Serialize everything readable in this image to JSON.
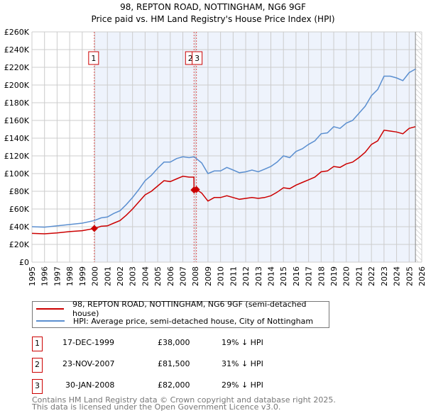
{
  "title": "98, REPTON ROAD, NOTTINGHAM, NG6 9GF",
  "subtitle": "Price paid vs. HM Land Registry's House Price Index (HPI)",
  "chart_data": {
    "type": "line",
    "ylim": [
      0,
      260000
    ],
    "xlim": [
      1995,
      2026
    ],
    "yticks": [
      {
        "v": 0,
        "label": "£0"
      },
      {
        "v": 20000,
        "label": "£20K"
      },
      {
        "v": 40000,
        "label": "£40K"
      },
      {
        "v": 60000,
        "label": "£60K"
      },
      {
        "v": 80000,
        "label": "£80K"
      },
      {
        "v": 100000,
        "label": "£100K"
      },
      {
        "v": 120000,
        "label": "£120K"
      },
      {
        "v": 140000,
        "label": "£140K"
      },
      {
        "v": 160000,
        "label": "£160K"
      },
      {
        "v": 180000,
        "label": "£180K"
      },
      {
        "v": 200000,
        "label": "£200K"
      },
      {
        "v": 220000,
        "label": "£220K"
      },
      {
        "v": 240000,
        "label": "£240K"
      },
      {
        "v": 260000,
        "label": "£260K"
      }
    ],
    "xticks": [
      "1995",
      "1996",
      "1997",
      "1998",
      "1999",
      "2000",
      "2001",
      "2002",
      "2003",
      "2004",
      "2005",
      "2006",
      "2007",
      "2008",
      "2009",
      "2010",
      "2011",
      "2012",
      "2013",
      "2014",
      "2015",
      "2016",
      "2017",
      "2018",
      "2019",
      "2020",
      "2021",
      "2022",
      "2023",
      "2024",
      "2025",
      "2026"
    ],
    "grid": true,
    "series": [
      {
        "name": "HPI: Average price, semi-detached house, City of Nottingham",
        "color": "#5b8fd0",
        "x": [
          1995,
          1996,
          1997,
          1998,
          1999,
          1999.96,
          2000.5,
          2001,
          2001.5,
          2002,
          2002.5,
          2003,
          2003.5,
          2004,
          2004.5,
          2005,
          2005.5,
          2006,
          2006.5,
          2007,
          2007.5,
          2007.89,
          2008.08,
          2008.5,
          2009,
          2009.5,
          2010,
          2010.5,
          2011,
          2011.5,
          2012,
          2012.5,
          2013,
          2013.5,
          2014,
          2014.5,
          2015,
          2015.5,
          2016,
          2016.5,
          2017,
          2017.5,
          2018,
          2018.5,
          2019,
          2019.5,
          2020,
          2020.5,
          2021,
          2021.5,
          2022,
          2022.5,
          2023,
          2023.5,
          2024,
          2024.5,
          2025,
          2025.5
        ],
        "y": [
          40000,
          39500,
          41000,
          42500,
          44000,
          47000,
          50000,
          51000,
          55000,
          58000,
          65000,
          73000,
          82000,
          92000,
          98000,
          106000,
          113000,
          113000,
          117000,
          119000,
          118000,
          119000,
          117000,
          112000,
          100000,
          103000,
          103000,
          107000,
          104000,
          101000,
          102000,
          104000,
          102000,
          105000,
          108000,
          113000,
          120000,
          118000,
          125000,
          128000,
          133000,
          137000,
          145000,
          146000,
          153000,
          151000,
          157000,
          160000,
          168000,
          176000,
          188000,
          195000,
          210000,
          210000,
          208000,
          205000,
          214000,
          218000
        ]
      },
      {
        "name": "98, REPTON ROAD, NOTTINGHAM, NG6 9GF (semi-detached house)",
        "color": "#cc0000",
        "x": [
          1995,
          1996,
          1997,
          1998,
          1999,
          1999.96,
          2000.5,
          2001,
          2001.5,
          2002,
          2002.5,
          2003,
          2003.5,
          2004,
          2004.5,
          2005,
          2005.5,
          2006,
          2006.5,
          2007,
          2007.5,
          2007.88,
          2007.89,
          2008.08,
          2008.5,
          2009,
          2009.5,
          2010,
          2010.5,
          2011,
          2011.5,
          2012,
          2012.5,
          2013,
          2013.5,
          2014,
          2014.5,
          2015,
          2015.5,
          2016,
          2016.5,
          2017,
          2017.5,
          2018,
          2018.5,
          2019,
          2019.5,
          2020,
          2020.5,
          2021,
          2021.5,
          2022,
          2022.5,
          2023,
          2023.5,
          2024,
          2024.5,
          2025,
          2025.5
        ],
        "y": [
          32500,
          32000,
          33000,
          34500,
          35500,
          38000,
          40500,
          41000,
          44000,
          47000,
          53000,
          60000,
          68000,
          76000,
          80000,
          86000,
          92000,
          91000,
          94000,
          97000,
          96000,
          96000,
          81500,
          82000,
          78000,
          69000,
          73000,
          73000,
          75000,
          73000,
          71000,
          72000,
          73000,
          72000,
          73000,
          75000,
          79000,
          84000,
          83000,
          87000,
          90000,
          93000,
          96000,
          102000,
          103000,
          108000,
          107000,
          111000,
          113000,
          118000,
          124000,
          133000,
          137000,
          149000,
          148000,
          147000,
          145000,
          151000,
          153000
        ]
      }
    ],
    "sales": [
      {
        "id": "1",
        "x": 1999.96,
        "y": 38000
      },
      {
        "id": "2",
        "x": 2007.89,
        "y": 81500
      },
      {
        "id": "3",
        "x": 2008.08,
        "y": 82000
      }
    ],
    "shaded_from": 1999.96,
    "hatched_from": 2025.5
  },
  "legend": {
    "red": "98, REPTON ROAD, NOTTINGHAM, NG6 9GF (semi-detached house)",
    "blue": "HPI: Average price, semi-detached house, City of Nottingham"
  },
  "table": [
    {
      "num": "1",
      "date": "17-DEC-1999",
      "price": "£38,000",
      "hpi": "19% ↓ HPI"
    },
    {
      "num": "2",
      "date": "23-NOV-2007",
      "price": "£81,500",
      "hpi": "31% ↓ HPI"
    },
    {
      "num": "3",
      "date": "30-JAN-2008",
      "price": "£82,000",
      "hpi": "29% ↓ HPI"
    }
  ],
  "footer": {
    "line1": "Contains HM Land Registry data © Crown copyright and database right 2025.",
    "line2": "This data is licensed under the Open Government Licence v3.0."
  }
}
